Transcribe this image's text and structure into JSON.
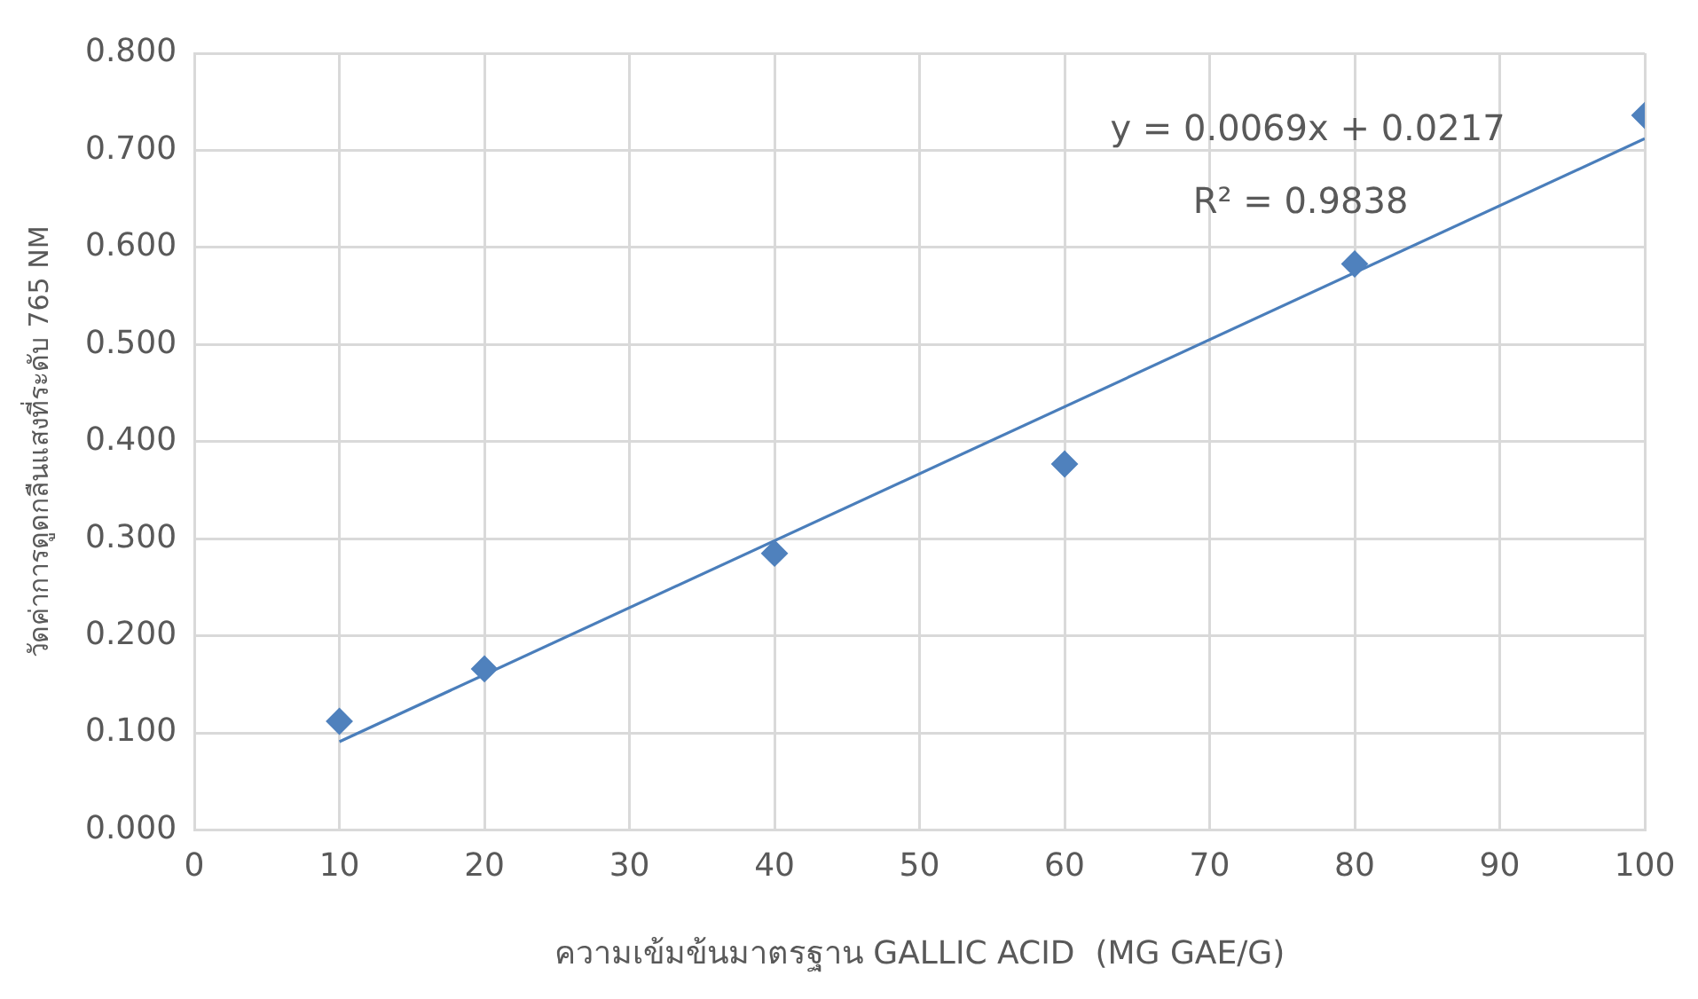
{
  "chart_data": {
    "type": "scatter",
    "xlabel": "ความเข้มข้นมาตรฐาน GALLIC ACID  (MG GAE/G)",
    "ylabel": "วัดค่าการดูดกลืนแสงที่ระดับ 765 NM",
    "x": [
      10,
      20,
      40,
      60,
      80,
      100
    ],
    "series": [
      {
        "color": "#4f81bd",
        "values": [
          0.112,
          0.166,
          0.285,
          0.377,
          0.583,
          0.736
        ]
      },
      {
        "type": "line",
        "marker": "none",
        "color": "#4a7ebb",
        "x": [
          10,
          100
        ],
        "values": [
          0.091,
          0.712
        ]
      }
    ],
    "annotations": [
      "y = 0.0069x + 0.0217",
      "R² = 0.9838"
    ],
    "xlim": [
      0,
      100
    ],
    "xticks": [
      0,
      10,
      20,
      30,
      40,
      50,
      60,
      70,
      80,
      90,
      100
    ],
    "ylim": [
      0,
      0.8
    ],
    "yticks": [
      {
        "value": 0,
        "label": "0.000"
      },
      {
        "value": 0.1,
        "label": "0.100"
      },
      {
        "value": 0.2,
        "label": "0.200"
      },
      {
        "value": 0.3,
        "label": "0.300"
      },
      {
        "value": 0.4,
        "label": "0.400"
      },
      {
        "value": 0.5,
        "label": "0.500"
      },
      {
        "value": 0.6,
        "label": "0.600"
      },
      {
        "value": 0.7,
        "label": "0.700"
      },
      {
        "value": 0.8,
        "label": "0.800"
      }
    ],
    "grid": true,
    "legend": false,
    "marker": "diamond",
    "line_style": "solid"
  }
}
